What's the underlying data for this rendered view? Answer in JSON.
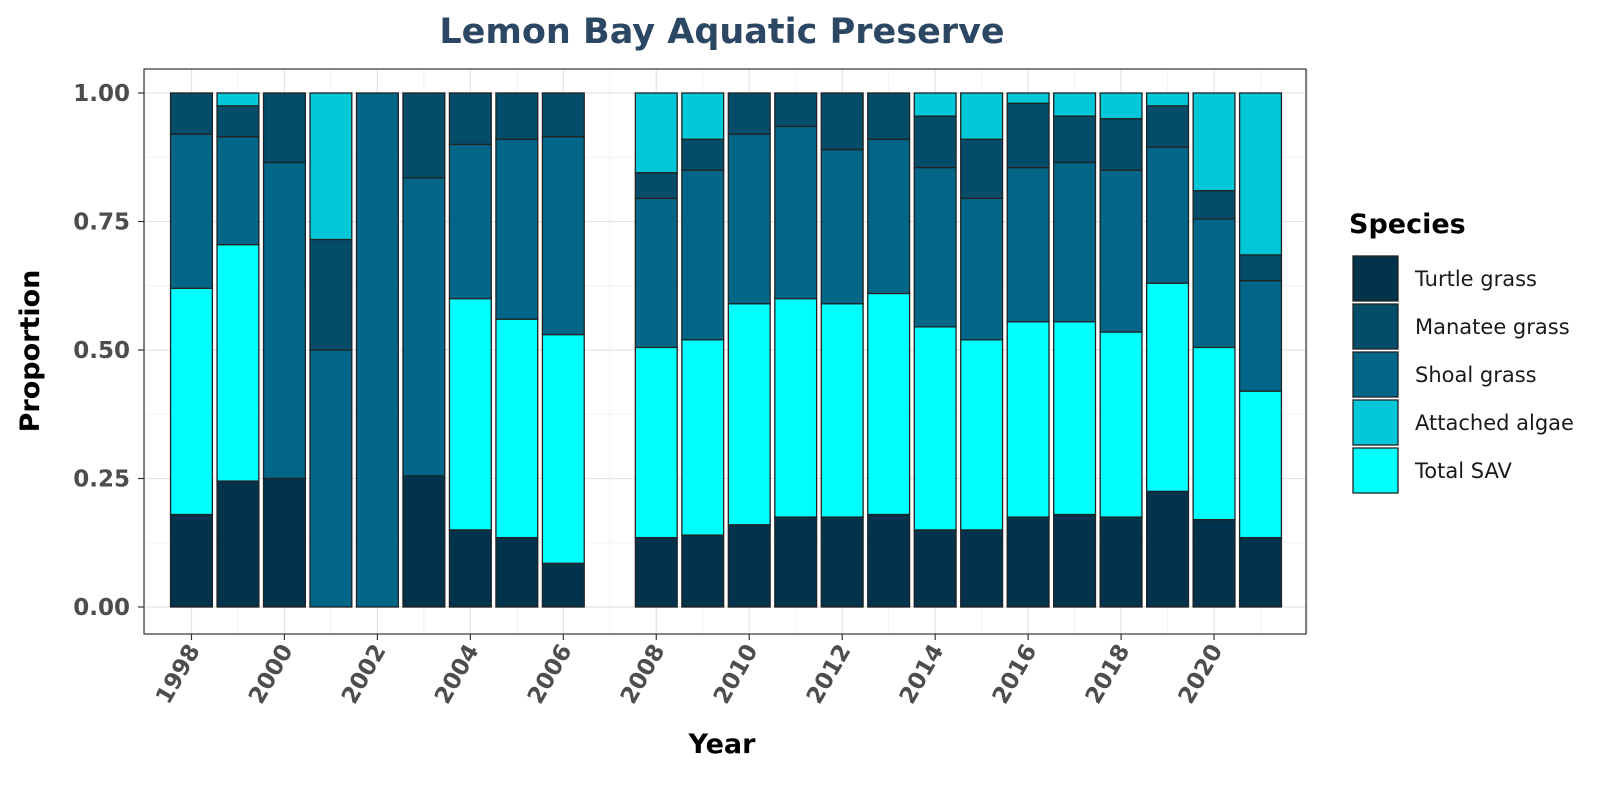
{
  "chart_data": {
    "type": "bar",
    "stacked": true,
    "title": "Lemon Bay Aquatic Preserve",
    "xlabel": "Year",
    "ylabel": "Proportion",
    "ylim": [
      0,
      1
    ],
    "xlim": [
      1997,
      2022
    ],
    "grid": true,
    "legend_position": "right",
    "legend_title": "Species",
    "y_ticks": [
      "0.00",
      "0.25",
      "0.50",
      "0.75",
      "1.00"
    ],
    "x_ticks": [
      "1998",
      "2000",
      "2002",
      "2004",
      "2006",
      "2008",
      "2010",
      "2012",
      "2014",
      "2016",
      "2018",
      "2020"
    ],
    "categories": [
      1998,
      1999,
      2000,
      2001,
      2002,
      2003,
      2004,
      2005,
      2006,
      2008,
      2009,
      2010,
      2011,
      2012,
      2013,
      2014,
      2015,
      2016,
      2017,
      2018,
      2019,
      2020,
      2021
    ],
    "series": [
      {
        "name": "Turtle grass",
        "color": "#02334d",
        "values": [
          0.18,
          0.245,
          0.25,
          0,
          0,
          0.255,
          0.15,
          0.135,
          0.085,
          0.135,
          0.14,
          0.16,
          0.175,
          0.175,
          0.18,
          0.15,
          0.15,
          0.175,
          0.18,
          0.175,
          0.225,
          0.17,
          0.135
        ]
      },
      {
        "name": "Total SAV",
        "color": "#00ffff",
        "values": [
          0.44,
          0.46,
          0,
          0,
          0,
          0,
          0.45,
          0.425,
          0.445,
          0.37,
          0.38,
          0.43,
          0.425,
          0.415,
          0.43,
          0.395,
          0.37,
          0.38,
          0.375,
          0.36,
          0.405,
          0.335,
          0.285
        ]
      },
      {
        "name": "Shoal grass",
        "color": "#016687",
        "values": [
          0.3,
          0.21,
          0.615,
          0.5,
          1.0,
          0.58,
          0.3,
          0.35,
          0.385,
          0.29,
          0.33,
          0.33,
          0.335,
          0.3,
          0.3,
          0.31,
          0.275,
          0.3,
          0.31,
          0.315,
          0.265,
          0.25,
          0.215
        ]
      },
      {
        "name": "Manatee grass",
        "color": "#034d6a",
        "values": [
          0.08,
          0.06,
          0.135,
          0.215,
          0,
          0.165,
          0.1,
          0.09,
          0.085,
          0.05,
          0.06,
          0.08,
          0.065,
          0.11,
          0.09,
          0.1,
          0.115,
          0.125,
          0.09,
          0.1,
          0.08,
          0.055,
          0.05
        ]
      },
      {
        "name": "Attached algae",
        "color": "#00c8d8",
        "values": [
          0,
          0.025,
          0,
          0.285,
          0,
          0,
          0,
          0,
          0,
          0.155,
          0.09,
          0,
          0,
          0,
          0,
          0.045,
          0.09,
          0.02,
          0.045,
          0.05,
          0.025,
          0.19,
          0.315
        ]
      }
    ],
    "legend_order": [
      "Turtle grass",
      "Manatee grass",
      "Shoal grass",
      "Attached algae",
      "Total SAV"
    ]
  }
}
